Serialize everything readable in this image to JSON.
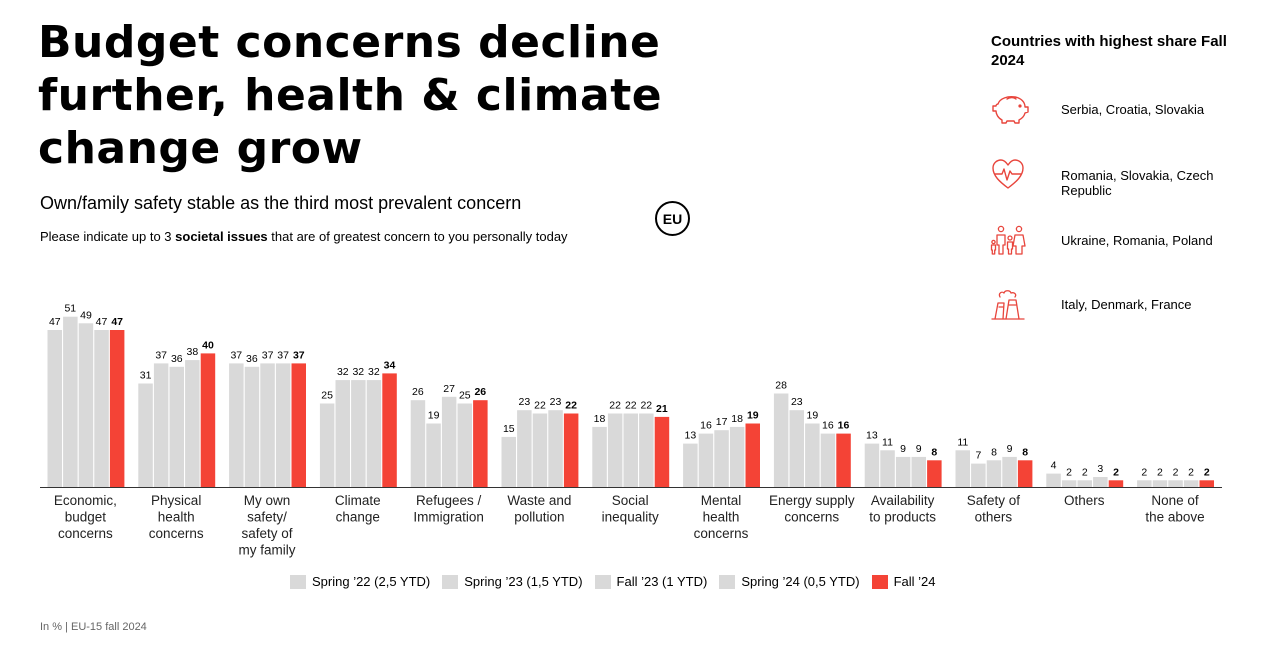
{
  "title": "Budget concerns decline further, health & climate change grow",
  "subtitle": "Own/family safety stable as the third most prevalent concern",
  "question": {
    "pre": "Please indicate up to 3 ",
    "bold": "societal issues",
    "post": " that are of greatest concern to you personally today"
  },
  "badge": "EU",
  "panel": {
    "title": "Countries with highest share Fall 2024",
    "items": [
      {
        "icon": "piggy-bank-icon",
        "text": "Serbia, Croatia, Slovakia"
      },
      {
        "icon": "heart-pulse-icon",
        "text": "Romania, Slovakia, Czech Republic"
      },
      {
        "icon": "family-icon",
        "text": "Ukraine, Romania, Poland"
      },
      {
        "icon": "factory-icon",
        "text": "Italy, Denmark, France"
      }
    ]
  },
  "footnote": "In % | EU-15 fall 2024",
  "colors": {
    "grey": "#d9d9d9",
    "accent": "#f44336",
    "icon": "#e8453c"
  },
  "chart_data": {
    "type": "bar",
    "categories": [
      [
        "Economic,",
        "budget",
        "concerns"
      ],
      [
        "Physical",
        "health",
        "concerns"
      ],
      [
        "My own",
        "safety/",
        "safety of",
        "my family"
      ],
      [
        "Climate",
        "change"
      ],
      [
        "Refugees /",
        "Immigration"
      ],
      [
        "Waste and",
        "pollution"
      ],
      [
        "Social",
        "inequality"
      ],
      [
        "Mental",
        "health",
        "concerns"
      ],
      [
        "Energy supply",
        "concerns"
      ],
      [
        "Availability",
        "to products"
      ],
      [
        "Safety of",
        "others"
      ],
      [
        "Others"
      ],
      [
        "None of",
        "the above"
      ]
    ],
    "series": [
      {
        "name": "Spring ’22 (2,5 YTD)",
        "values": [
          47,
          31,
          37,
          25,
          26,
          15,
          18,
          13,
          28,
          13,
          11,
          4,
          2
        ]
      },
      {
        "name": "Spring ’23 (1,5 YTD)",
        "values": [
          51,
          37,
          36,
          32,
          19,
          23,
          22,
          16,
          23,
          11,
          7,
          2,
          2
        ]
      },
      {
        "name": "Fall ’23 (1 YTD)",
        "values": [
          49,
          36,
          37,
          32,
          27,
          22,
          22,
          17,
          19,
          9,
          8,
          2,
          2
        ]
      },
      {
        "name": "Spring ’24 (0,5 YTD)",
        "values": [
          47,
          38,
          37,
          32,
          25,
          23,
          22,
          18,
          16,
          9,
          9,
          3,
          2
        ]
      },
      {
        "name": "Fall ’24",
        "values": [
          47,
          40,
          37,
          34,
          26,
          22,
          21,
          19,
          16,
          8,
          8,
          2,
          2
        ]
      }
    ],
    "ylim": [
      0,
      55
    ],
    "grid": false,
    "legend_position": "bottom"
  }
}
